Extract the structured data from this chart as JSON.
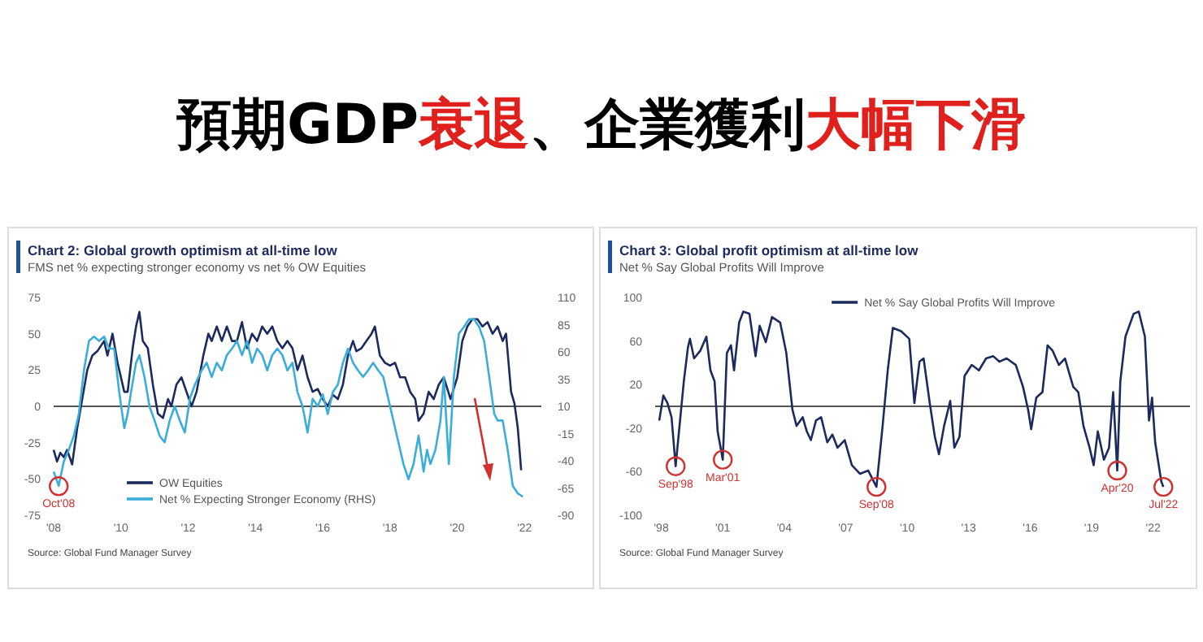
{
  "chart_data": [
    {
      "type": "other",
      "categories": [
        "預期GDP",
        "衰退",
        "、企業獲利",
        "大幅下滑"
      ],
      "colors": [
        "#000000",
        "#e0201c",
        "#000000",
        "#e0201c"
      ]
    },
    {
      "type": "line",
      "title": "Chart 2: Global growth optimism at all-time low",
      "subtitle": "FMS net % expecting stronger economy vs net % OW Equities",
      "xlim": [
        2008,
        2022.5
      ],
      "xticks": [
        {
          "value": 2008,
          "label": "'08"
        },
        {
          "value": 2010,
          "label": "'10"
        },
        {
          "value": 2012,
          "label": "'12"
        },
        {
          "value": 2014,
          "label": "'14"
        },
        {
          "value": 2016,
          "label": "'16"
        },
        {
          "value": 2018,
          "label": "'18"
        },
        {
          "value": 2020,
          "label": "'20"
        },
        {
          "value": 2022,
          "label": "'22"
        }
      ],
      "ylim": [
        -75,
        75
      ],
      "yticks": [
        -75,
        -50,
        -25,
        0,
        25,
        50,
        75
      ],
      "y2lim": [
        -90,
        110
      ],
      "y2ticks": [
        -90,
        -65,
        -40,
        -15,
        10,
        35,
        60,
        85,
        110
      ],
      "legend": "bottom left",
      "grid": false,
      "ref_lines": [
        {
          "axis": "y",
          "value": 0,
          "color": "#555555"
        }
      ],
      "annotations": [
        {
          "text": "Oct'08",
          "x": 2008.15,
          "y": -55
        },
        "Source: Global Fund Manager Survey"
      ],
      "series": [
        {
          "name": "OW Equities",
          "color": "#1c2a5e",
          "x": [
            2008.0,
            2008.1,
            2008.2,
            2008.3,
            2008.4,
            2008.55,
            2008.7,
            2008.85,
            2009.0,
            2009.15,
            2009.3,
            2009.5,
            2009.6,
            2009.75,
            2009.9,
            2010.1,
            2010.2,
            2010.35,
            2010.45,
            2010.55,
            2010.65,
            2010.8,
            2010.95,
            2011.1,
            2011.25,
            2011.4,
            2011.5,
            2011.65,
            2011.8,
            2011.95,
            2012.1,
            2012.25,
            2012.45,
            2012.6,
            2012.7,
            2012.85,
            2013.0,
            2013.15,
            2013.3,
            2013.45,
            2013.6,
            2013.75,
            2013.9,
            2014.05,
            2014.2,
            2014.35,
            2014.5,
            2014.65,
            2014.8,
            2014.95,
            2015.1,
            2015.25,
            2015.4,
            2015.55,
            2015.7,
            2015.85,
            2016.0,
            2016.15,
            2016.3,
            2016.45,
            2016.6,
            2016.75,
            2016.9,
            2017.0,
            2017.15,
            2017.3,
            2017.45,
            2017.55,
            2017.7,
            2017.85,
            2018.0,
            2018.15,
            2018.3,
            2018.45,
            2018.6,
            2018.75,
            2018.85,
            2019.0,
            2019.15,
            2019.3,
            2019.45,
            2019.6,
            2019.8,
            2020.0,
            2020.15,
            2020.3,
            2020.45,
            2020.6,
            2020.75,
            2020.9,
            2021.05,
            2021.2,
            2021.35,
            2021.45,
            2021.6,
            2021.7,
            2021.8,
            2021.9
          ],
          "values": [
            -30,
            -38,
            -32,
            -35,
            -30,
            -40,
            -15,
            5,
            25,
            35,
            38,
            45,
            35,
            50,
            30,
            10,
            10,
            40,
            55,
            65,
            45,
            40,
            15,
            -5,
            -8,
            5,
            0,
            15,
            20,
            10,
            0,
            10,
            35,
            50,
            45,
            55,
            45,
            55,
            45,
            45,
            58,
            40,
            50,
            45,
            55,
            50,
            55,
            45,
            40,
            45,
            40,
            25,
            35,
            20,
            10,
            12,
            5,
            0,
            8,
            5,
            15,
            35,
            45,
            38,
            40,
            45,
            50,
            55,
            35,
            30,
            28,
            30,
            20,
            20,
            10,
            5,
            -10,
            -5,
            10,
            5,
            15,
            20,
            5,
            20,
            45,
            55,
            60,
            60,
            55,
            58,
            50,
            55,
            45,
            50,
            10,
            2,
            -15,
            -44
          ]
        },
        {
          "name": "Net % Expecting Stronger Economy (RHS)",
          "color": "#3aaed8",
          "axis": "y2",
          "x": [
            2008.0,
            2008.15,
            2008.3,
            2008.45,
            2008.6,
            2008.75,
            2008.9,
            2009.05,
            2009.2,
            2009.35,
            2009.5,
            2009.65,
            2009.8,
            2009.95,
            2010.1,
            2010.2,
            2010.3,
            2010.45,
            2010.55,
            2010.7,
            2010.85,
            2011.0,
            2011.15,
            2011.3,
            2011.45,
            2011.6,
            2011.75,
            2011.9,
            2012.05,
            2012.2,
            2012.4,
            2012.55,
            2012.7,
            2012.85,
            2013.0,
            2013.15,
            2013.3,
            2013.45,
            2013.6,
            2013.75,
            2013.9,
            2014.05,
            2014.2,
            2014.35,
            2014.5,
            2014.65,
            2014.8,
            2014.95,
            2015.1,
            2015.25,
            2015.4,
            2015.55,
            2015.7,
            2015.85,
            2016.0,
            2016.15,
            2016.3,
            2016.45,
            2016.6,
            2016.75,
            2016.9,
            2017.05,
            2017.2,
            2017.35,
            2017.5,
            2017.65,
            2017.8,
            2017.95,
            2018.1,
            2018.25,
            2018.4,
            2018.55,
            2018.7,
            2018.85,
            2019.0,
            2019.1,
            2019.2,
            2019.35,
            2019.5,
            2019.6,
            2019.75,
            2019.9,
            2020.05,
            2020.2,
            2020.35,
            2020.5,
            2020.65,
            2020.8,
            2020.95,
            2021.1,
            2021.2,
            2021.35,
            2021.5,
            2021.65,
            2021.8,
            2021.95
          ],
          "values": [
            -50,
            -63,
            -41,
            -30,
            -17,
            3,
            43,
            70,
            74,
            70,
            74,
            63,
            63,
            23,
            -10,
            3,
            23,
            50,
            57,
            37,
            10,
            -3,
            -17,
            -23,
            -3,
            10,
            -3,
            -14,
            17,
            30,
            43,
            50,
            37,
            50,
            43,
            57,
            63,
            70,
            57,
            70,
            50,
            63,
            57,
            43,
            57,
            63,
            57,
            43,
            50,
            23,
            10,
            -14,
            17,
            10,
            21,
            3,
            23,
            30,
            50,
            63,
            50,
            43,
            37,
            43,
            50,
            43,
            37,
            17,
            -3,
            -23,
            -43,
            -57,
            -43,
            -17,
            -50,
            -30,
            -43,
            -30,
            -3,
            37,
            -43,
            37,
            77,
            83,
            90,
            90,
            83,
            70,
            37,
            3,
            -3,
            -3,
            -30,
            -63,
            -70,
            -73
          ]
        }
      ]
    },
    {
      "type": "line",
      "title": "Chart 3: Global profit optimism at all-time low",
      "subtitle": "Net % Say Global Profits Will Improve",
      "xlim": [
        1997.7,
        2023.8
      ],
      "xticks": [
        {
          "value": 1998,
          "label": "'98"
        },
        {
          "value": 2001,
          "label": "'01"
        },
        {
          "value": 2004,
          "label": "'04"
        },
        {
          "value": 2007,
          "label": "'07"
        },
        {
          "value": 2010,
          "label": "'10"
        },
        {
          "value": 2013,
          "label": "'13"
        },
        {
          "value": 2016,
          "label": "'16"
        },
        {
          "value": 2019,
          "label": "'19"
        },
        {
          "value": 2022,
          "label": "'22"
        }
      ],
      "ylim": [
        -100,
        100
      ],
      "yticks": [
        -100,
        -60,
        -20,
        20,
        60,
        100
      ],
      "legend": "top right",
      "grid": false,
      "ref_lines": [
        {
          "axis": "y",
          "value": 0,
          "color": "#555555"
        }
      ],
      "annotations": [
        {
          "text": "Sep'98",
          "x": 1998.7,
          "y": -55
        },
        {
          "text": "Mar'01",
          "x": 2001.0,
          "y": -49
        },
        {
          "text": "Sep'08",
          "x": 2008.5,
          "y": -74
        },
        {
          "text": "Apr'20",
          "x": 2020.25,
          "y": -59
        },
        {
          "text": "Jul'22",
          "x": 2022.5,
          "y": -74
        },
        "Source: Global Fund Manager Survey"
      ],
      "series": [
        {
          "name": "Net % Say Global Profits Will Improve",
          "color": "#1c2a5e",
          "x": [
            1997.9,
            1998.1,
            1998.3,
            1998.5,
            1998.7,
            1999.1,
            1999.3,
            1999.4,
            1999.6,
            1999.9,
            2000.2,
            2000.4,
            2000.6,
            2000.75,
            2001.0,
            2001.2,
            2001.4,
            2001.55,
            2001.8,
            2002.0,
            2002.3,
            2002.6,
            2002.8,
            2003.1,
            2003.4,
            2003.8,
            2004.1,
            2004.4,
            2004.6,
            2004.9,
            2005.1,
            2005.3,
            2005.55,
            2005.8,
            2006.1,
            2006.35,
            2006.6,
            2006.95,
            2007.3,
            2007.7,
            2008.1,
            2008.5,
            2008.8,
            2009.05,
            2009.3,
            2009.7,
            2010.1,
            2010.35,
            2010.6,
            2010.8,
            2011.1,
            2011.35,
            2011.55,
            2011.8,
            2012.1,
            2012.3,
            2012.55,
            2012.8,
            2013.15,
            2013.5,
            2013.85,
            2014.2,
            2014.5,
            2014.85,
            2015.3,
            2015.65,
            2015.9,
            2016.05,
            2016.3,
            2016.6,
            2016.85,
            2017.1,
            2017.4,
            2017.7,
            2018.1,
            2018.35,
            2018.6,
            2018.9,
            2019.1,
            2019.3,
            2019.6,
            2019.85,
            2020.05,
            2020.25,
            2020.4,
            2020.65,
            2021.05,
            2021.3,
            2021.6,
            2021.8,
            2021.95,
            2022.1,
            2022.4,
            2022.5
          ],
          "values": [
            -13,
            10,
            3,
            -10,
            -55,
            23,
            54,
            62,
            44,
            51,
            64,
            33,
            23,
            -23,
            -49,
            49,
            56,
            33,
            77,
            87,
            85,
            46,
            74,
            59,
            82,
            77,
            49,
            -3,
            -18,
            -10,
            -23,
            -31,
            -13,
            -10,
            -33,
            -26,
            -38,
            -31,
            -54,
            -62,
            -59,
            -74,
            -18,
            33,
            72,
            69,
            62,
            3,
            41,
            44,
            3,
            -28,
            -44,
            -18,
            5,
            -38,
            -28,
            28,
            38,
            33,
            44,
            46,
            41,
            44,
            38,
            18,
            -3,
            -21,
            8,
            13,
            56,
            51,
            38,
            44,
            18,
            13,
            -18,
            -38,
            -54,
            -23,
            -49,
            -38,
            13,
            -59,
            23,
            64,
            85,
            87,
            64,
            -13,
            8,
            -33,
            -69,
            -74
          ]
        }
      ]
    }
  ]
}
